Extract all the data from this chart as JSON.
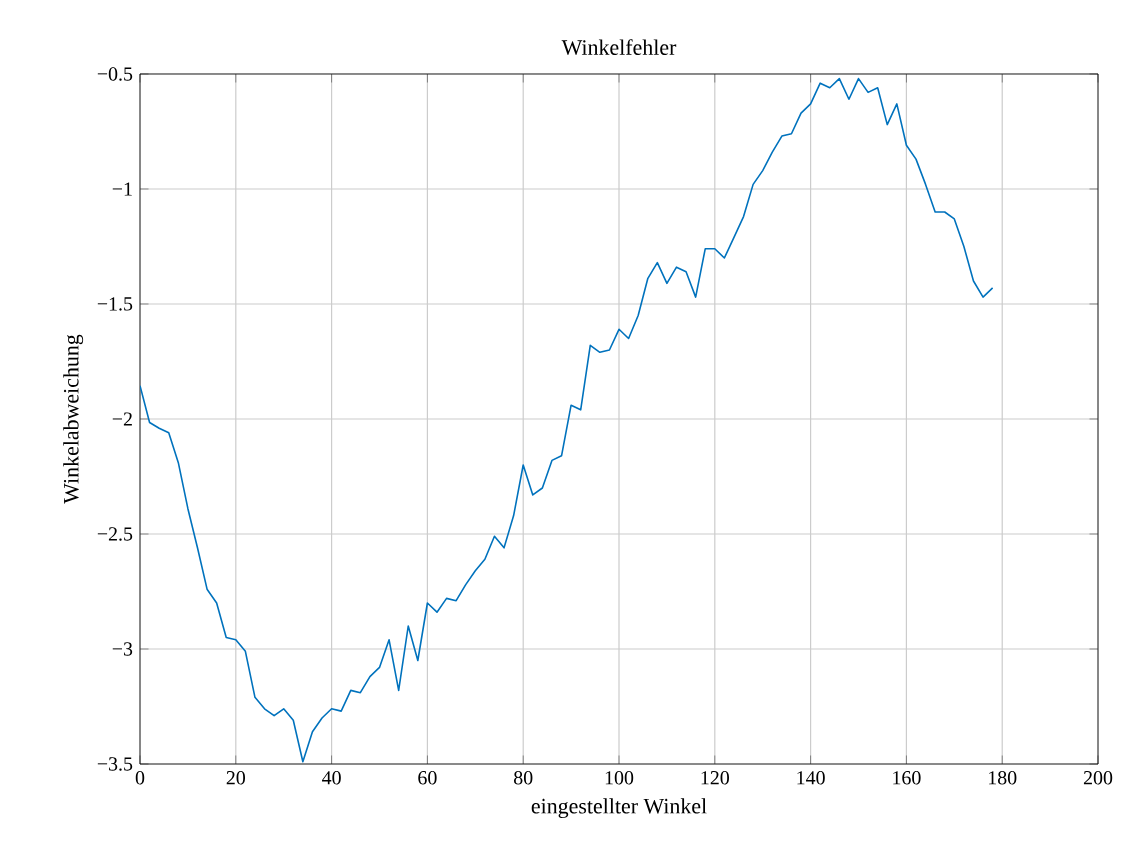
{
  "chart_data": {
    "type": "line",
    "title": "Winkelfehler",
    "xlabel": "eingestellter Winkel",
    "ylabel": "Winkelabweichung",
    "x": [
      0,
      2,
      4,
      6,
      8,
      10,
      12,
      14,
      16,
      18,
      20,
      22,
      24,
      26,
      28,
      30,
      32,
      34,
      36,
      38,
      40,
      42,
      44,
      46,
      48,
      50,
      52,
      54,
      56,
      58,
      60,
      62,
      64,
      66,
      68,
      70,
      72,
      74,
      76,
      78,
      80,
      82,
      84,
      86,
      88,
      90,
      92,
      94,
      96,
      98,
      100,
      102,
      104,
      106,
      108,
      110,
      112,
      114,
      116,
      118,
      120,
      122,
      124,
      126,
      128,
      130,
      132,
      134,
      136,
      138,
      140,
      142,
      144,
      146,
      148,
      150,
      152,
      154,
      156,
      158,
      160,
      162,
      164,
      166,
      168,
      170,
      172,
      174,
      176,
      178
    ],
    "series": [
      {
        "color": "#0072bd",
        "values": [
          -1.855,
          -2.015,
          -2.04,
          -2.06,
          -2.19,
          -2.39,
          -2.56,
          -2.74,
          -2.8,
          -2.95,
          -2.96,
          -3.01,
          -3.21,
          -3.26,
          -3.29,
          -3.26,
          -3.31,
          -3.49,
          -3.36,
          -3.3,
          -3.26,
          -3.27,
          -3.18,
          -3.19,
          -3.12,
          -3.08,
          -2.96,
          -3.18,
          -2.9,
          -3.05,
          -2.8,
          -2.84,
          -2.78,
          -2.79,
          -2.72,
          -2.66,
          -2.61,
          -2.51,
          -2.56,
          -2.42,
          -2.2,
          -2.33,
          -2.3,
          -2.18,
          -2.16,
          -1.94,
          -1.96,
          -1.68,
          -1.71,
          -1.7,
          -1.61,
          -1.65,
          -1.55,
          -1.39,
          -1.32,
          -1.41,
          -1.34,
          -1.36,
          -1.47,
          -1.26,
          -1.26,
          -1.3,
          -1.21,
          -1.12,
          -0.98,
          -0.92,
          -0.84,
          -0.77,
          -0.76,
          -0.67,
          -0.63,
          -0.54,
          -0.56,
          -0.52,
          -0.61,
          -0.52,
          -0.58,
          -0.56,
          -0.72,
          -0.63,
          -0.81,
          -0.87,
          -0.98,
          -1.1,
          -1.1,
          -1.13,
          -1.25,
          -1.4,
          -1.47,
          -1.43
        ]
      }
    ],
    "xlim": [
      0,
      200
    ],
    "ylim": [
      -3.5,
      -0.5
    ],
    "xticks": [
      0,
      20,
      40,
      60,
      80,
      100,
      120,
      140,
      160,
      180,
      200
    ],
    "yticks": [
      {
        "value": -3.5,
        "label": "−3.5"
      },
      {
        "value": -3,
        "label": "−3"
      },
      {
        "value": -2.5,
        "label": "−2.5"
      },
      {
        "value": -2,
        "label": "−2"
      },
      {
        "value": -1.5,
        "label": "−1.5"
      },
      {
        "value": -1,
        "label": "−1"
      },
      {
        "value": -0.5,
        "label": "−0.5"
      }
    ],
    "grid": true,
    "marker": "none",
    "line_style": "solid"
  }
}
